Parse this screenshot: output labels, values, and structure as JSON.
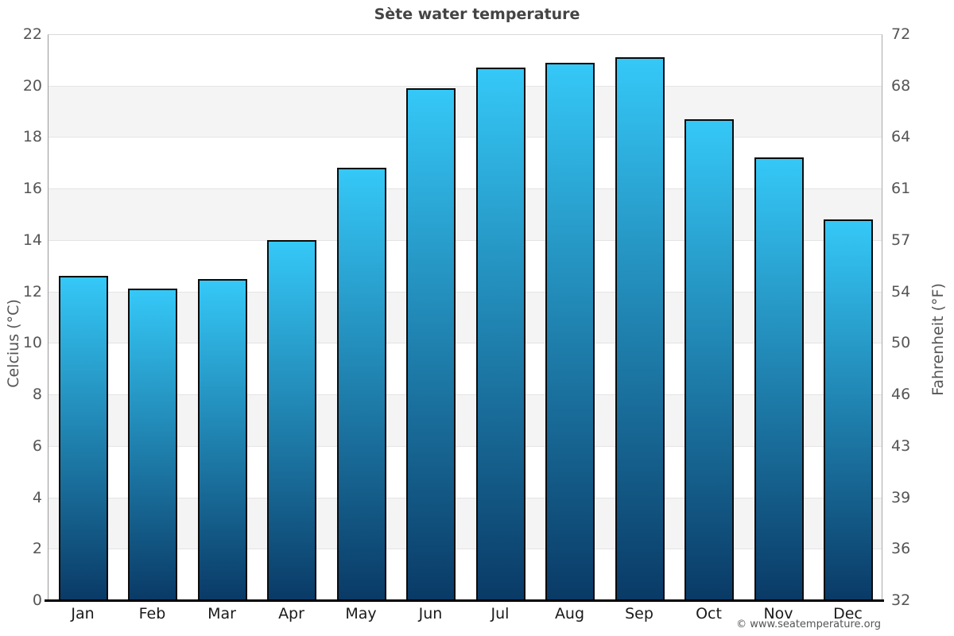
{
  "title": "Sète water temperature",
  "axes": {
    "left_label": "Celcius (°C)",
    "right_label": "Fahrenheit (°F)",
    "celsius_ticks": [
      22,
      20,
      18,
      16,
      14,
      12,
      10,
      8,
      6,
      4,
      2,
      0
    ],
    "fahrenheit_ticks": [
      72,
      68,
      64,
      61,
      57,
      54,
      50,
      46,
      43,
      39,
      36,
      32
    ]
  },
  "chart_data": {
    "type": "bar",
    "title": "Sète water temperature",
    "categories": [
      "Jan",
      "Feb",
      "Mar",
      "Apr",
      "May",
      "Jun",
      "Jul",
      "Aug",
      "Sep",
      "Oct",
      "Nov",
      "Dec"
    ],
    "values": [
      12.6,
      12.1,
      12.5,
      14.0,
      16.8,
      19.9,
      20.7,
      20.9,
      21.1,
      18.7,
      17.2,
      14.8
    ],
    "xlabel": "",
    "ylabel": "Celcius (°C)",
    "y2label": "Fahrenheit (°F)",
    "ylim": [
      0,
      22
    ],
    "y2lim": [
      32,
      72
    ],
    "grid": true,
    "grid_style": "alternating horizontal bands every 2°C",
    "legend": "none"
  },
  "colors": {
    "bar_gradient_top": "#35c8f7",
    "bar_gradient_bottom": "#0a3a66",
    "bar_border": "#0b0b0b",
    "band_gray": "#f4f4f4",
    "band_white": "#ffffff",
    "gridline": "#e4e4e4",
    "axis_line": "#999999",
    "baseline": "#000000",
    "title_color": "#444444",
    "tick_color": "#555555",
    "month_color": "#1a1a1a"
  },
  "footer": {
    "copyright": "© www.seatemperature.org"
  }
}
